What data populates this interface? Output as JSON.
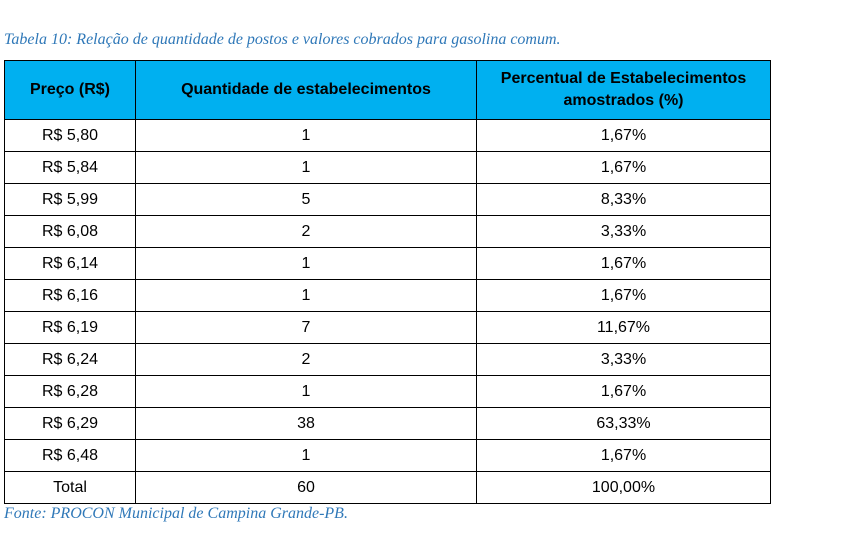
{
  "caption": "Tabela 10: Relação de quantidade de postos e valores cobrados para gasolina comum.",
  "table": {
    "headers": {
      "price": "Preço (R$)",
      "quantity": "Quantidade de estabelecimentos",
      "percent": "Percentual de Estabelecimentos amostrados (%)"
    },
    "rows": [
      {
        "price": "R$ 5,80",
        "quantity": "1",
        "percent": "1,67%"
      },
      {
        "price": "R$ 5,84",
        "quantity": "1",
        "percent": "1,67%"
      },
      {
        "price": "R$ 5,99",
        "quantity": "5",
        "percent": "8,33%"
      },
      {
        "price": "R$ 6,08",
        "quantity": "2",
        "percent": "3,33%"
      },
      {
        "price": "R$ 6,14",
        "quantity": "1",
        "percent": "1,67%"
      },
      {
        "price": "R$ 6,16",
        "quantity": "1",
        "percent": "1,67%"
      },
      {
        "price": "R$ 6,19",
        "quantity": "7",
        "percent": "11,67%"
      },
      {
        "price": "R$ 6,24",
        "quantity": "2",
        "percent": "3,33%"
      },
      {
        "price": "R$ 6,28",
        "quantity": "1",
        "percent": "1,67%"
      },
      {
        "price": "R$ 6,29",
        "quantity": "38",
        "percent": "63,33%"
      },
      {
        "price": "R$ 6,48",
        "quantity": "1",
        "percent": "1,67%"
      }
    ],
    "total": {
      "label": "Total",
      "quantity": "60",
      "percent": "100,00%"
    }
  },
  "source": "Fonte: PROCON Municipal de Campina Grande-PB.",
  "colors": {
    "header_bg": "#00b0f0",
    "caption_text": "#2f78b8"
  }
}
